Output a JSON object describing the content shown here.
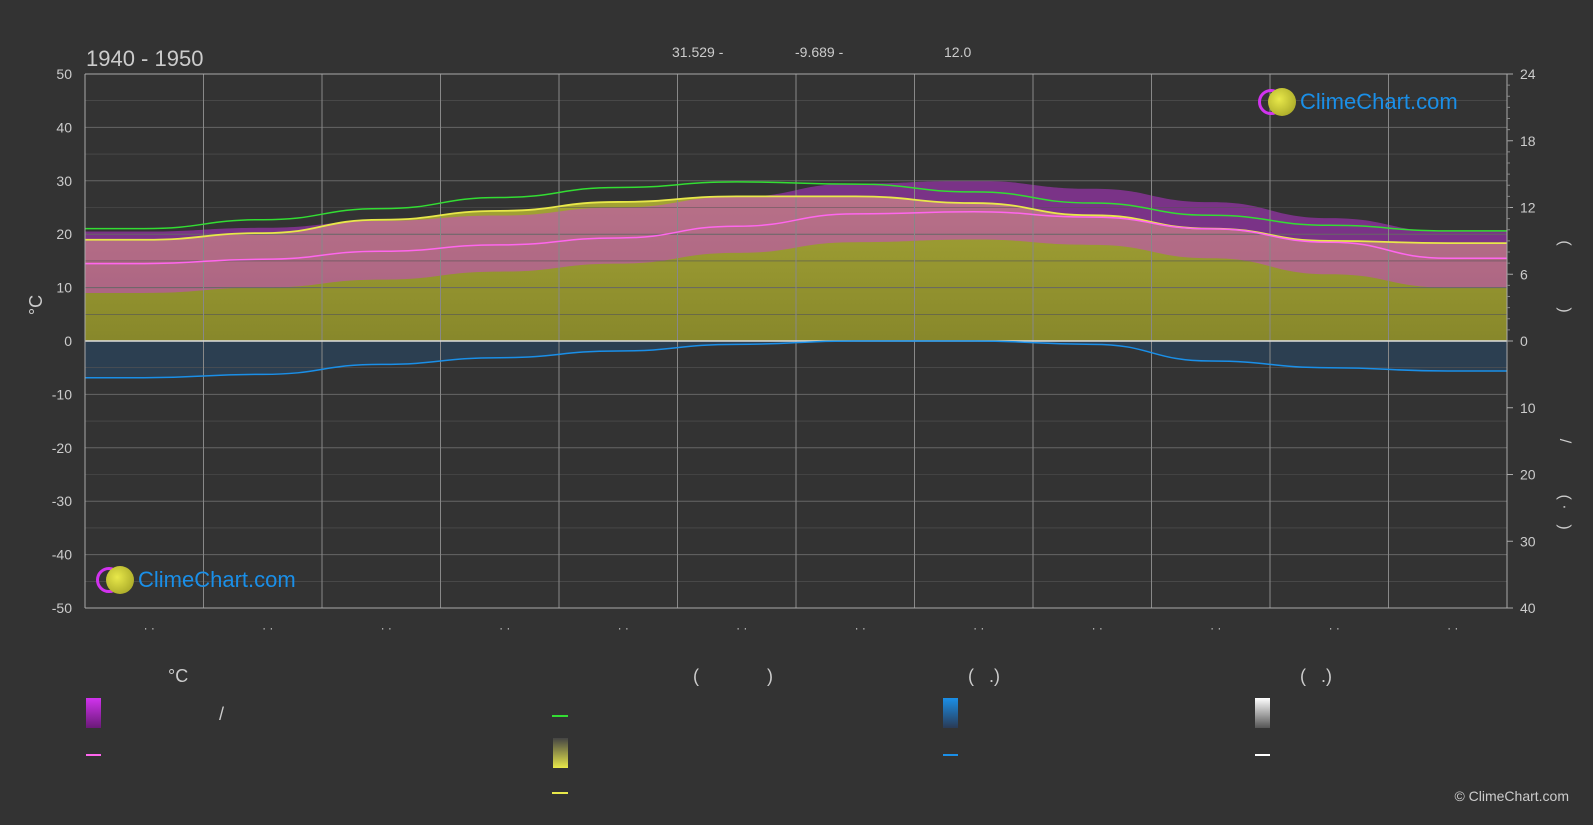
{
  "title": "1940 - 1950",
  "coords": {
    "lat": "31.529 -",
    "lon": "-9.689 -",
    "elev": "12.0"
  },
  "logo_text": "ClimeChart.com",
  "copyright": "© ClimeChart.com",
  "left_axis_unit": "°C",
  "right_axis_marks": [
    "(",
    ")",
    "(",
    ")",
    "/",
    "(",
    "·",
    ")"
  ],
  "month_labels": [
    "· ·",
    "· ·",
    "· ·",
    "· ·",
    "· ·",
    "· ·",
    "· ·",
    "· ·",
    "· ·",
    "· ·",
    "· ·",
    "· ·"
  ],
  "legend": {
    "col1_head": "°C",
    "col1_sep": "/",
    "col2_head_open": "(",
    "col2_head_close": ")",
    "col3_head": "(   .)",
    "col4_head": "(   .)"
  },
  "colors": {
    "background": "#333333",
    "temp_range": "#d133ee",
    "temp_mean": "#ff66ee",
    "daylight": "#33dd33",
    "sunshine": "#e8e84a",
    "sunshine_fill": "#9a9a2a",
    "precip": "#1a8fe8",
    "snow": "#ffffff"
  },
  "chart_data": {
    "type": "line",
    "x": [
      1,
      2,
      3,
      4,
      5,
      6,
      7,
      8,
      9,
      10,
      11,
      12
    ],
    "ylim_left": [
      -50,
      50
    ],
    "yticks_left": [
      50,
      40,
      30,
      20,
      10,
      0,
      -10,
      -20,
      -30,
      -40,
      -50
    ],
    "ylim_right_top": [
      0,
      24
    ],
    "yticks_right_top": [
      24,
      18,
      12,
      6,
      0
    ],
    "ylim_right_bottom": [
      0,
      40
    ],
    "yticks_right_bottom": [
      10,
      20,
      30,
      40
    ],
    "grid": true,
    "series": [
      {
        "key": "daylight",
        "values": [
          10.1,
          10.9,
          11.9,
          12.9,
          13.8,
          14.3,
          14.1,
          13.4,
          12.4,
          11.3,
          10.4,
          9.9
        ]
      },
      {
        "key": "sunshine",
        "values": [
          9.1,
          9.7,
          10.9,
          11.7,
          12.5,
          13.0,
          13.0,
          12.4,
          11.3,
          10.1,
          9.0,
          8.8
        ]
      },
      {
        "key": "temp_mean",
        "values": [
          14.5,
          15.3,
          16.8,
          18.0,
          19.3,
          21.5,
          23.8,
          24.2,
          23.2,
          21.0,
          18.5,
          15.5
        ]
      },
      {
        "key": "temp_max",
        "values": [
          20.5,
          21.2,
          22.5,
          23.5,
          25.0,
          27.0,
          29.5,
          30.0,
          28.5,
          26.0,
          23.0,
          20.5
        ]
      },
      {
        "key": "temp_min",
        "values": [
          9.0,
          10.0,
          11.5,
          13.0,
          14.5,
          16.5,
          18.5,
          19.0,
          18.0,
          15.5,
          12.5,
          10.0
        ]
      },
      {
        "key": "precip",
        "values": [
          5.5,
          5.0,
          3.5,
          2.5,
          1.5,
          0.5,
          0.0,
          0.0,
          0.5,
          3.0,
          4.0,
          4.5
        ]
      }
    ]
  }
}
